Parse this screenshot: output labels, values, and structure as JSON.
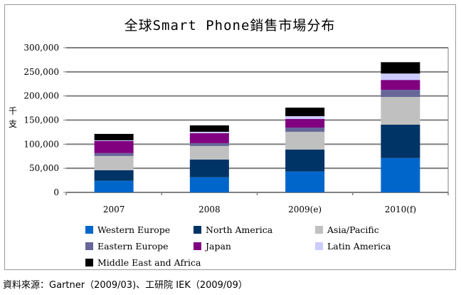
{
  "chart_data": {
    "type": "bar",
    "stacked": true,
    "title": "全球Smart Phone銷售市場分布",
    "xlabel": "",
    "ylabel": "千支",
    "ylim": [
      0,
      300000
    ],
    "yticks": [
      "0",
      "50,000",
      "100,000",
      "150,000",
      "200,000",
      "250,000",
      "300,000"
    ],
    "grid": true,
    "legend": "bottom",
    "categories": [
      "2007",
      "2008",
      "2009(e)",
      "2010(f)"
    ],
    "series": [
      {
        "name": "Western Europe",
        "color": "#0066CC",
        "values": [
          24000,
          31400,
          43200,
          71200
        ]
      },
      {
        "name": "North America",
        "color": "#003366",
        "values": [
          22000,
          36800,
          45700,
          69200
        ]
      },
      {
        "name": "Asia/Pacific",
        "color": "#C0C0C0",
        "values": [
          29500,
          28000,
          36800,
          57500
        ]
      },
      {
        "name": "Eastern Europe",
        "color": "#666699",
        "values": [
          6000,
          5900,
          8800,
          14700
        ]
      },
      {
        "name": "Japan",
        "color": "#800080",
        "values": [
          25000,
          20600,
          17700,
          20600
        ]
      },
      {
        "name": "Latin America",
        "color": "#CCCCFF",
        "values": [
          1500,
          3000,
          5900,
          13300
        ]
      },
      {
        "name": "Middle East and Africa",
        "color": "#000000",
        "values": [
          13300,
          13300,
          17700,
          23500
        ]
      }
    ]
  },
  "source": "資料來源：Gartner（2009/03)、工研院 IEK（2009/09）"
}
